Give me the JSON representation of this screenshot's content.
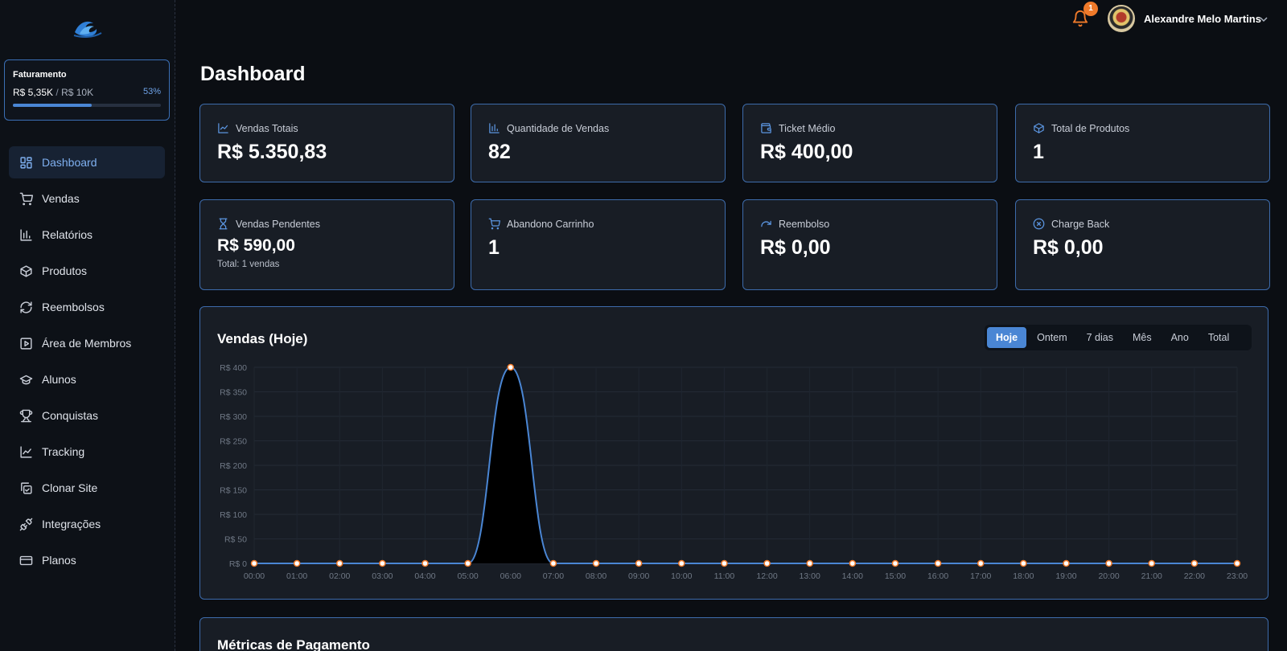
{
  "sidebar": {
    "logo_icon": "wave-logo-icon",
    "billing": {
      "title": "Faturamento",
      "current": "R$ 5,35K",
      "separator": "/",
      "goal": "R$ 10K",
      "percent_label": "53%",
      "progress": 0.53
    },
    "items": [
      {
        "label": "Dashboard",
        "icon": "grid-icon",
        "active": true
      },
      {
        "label": "Vendas",
        "icon": "cart-icon"
      },
      {
        "label": "Relatórios",
        "icon": "bar-chart-icon"
      },
      {
        "label": "Produtos",
        "icon": "box-icon"
      },
      {
        "label": "Reembolsos",
        "icon": "refresh-icon"
      },
      {
        "label": "Área de Membros",
        "icon": "play-square-icon"
      },
      {
        "label": "Alunos",
        "icon": "graduation-cap-icon"
      },
      {
        "label": "Conquistas",
        "icon": "trophy-icon"
      },
      {
        "label": "Tracking",
        "icon": "line-chart-icon"
      },
      {
        "label": "Clonar Site",
        "icon": "copy-check-icon"
      },
      {
        "label": "Integrações",
        "icon": "plug-icon"
      },
      {
        "label": "Planos",
        "icon": "credit-card-icon"
      }
    ]
  },
  "header": {
    "notifications_count": "1",
    "user_name": "Alexandre Melo Martins"
  },
  "page_title": "Dashboard",
  "stats": [
    {
      "label": "Vendas Totais",
      "value": "R$ 5.350,83",
      "icon": "trend-line-icon"
    },
    {
      "label": "Quantidade de Vendas",
      "value": "82",
      "icon": "bar-chart-icon"
    },
    {
      "label": "Ticket Médio",
      "value": "R$ 400,00",
      "icon": "wallet-icon"
    },
    {
      "label": "Total de Produtos",
      "value": "1",
      "icon": "box-icon"
    },
    {
      "label": "Vendas Pendentes",
      "value": "R$ 590,00",
      "sub": "Total: 1 vendas",
      "icon": "hourglass-icon"
    },
    {
      "label": "Abandono Carrinho",
      "value": "1",
      "icon": "cart-icon"
    },
    {
      "label": "Reembolso",
      "value": "R$ 0,00",
      "icon": "redo-arrow-icon"
    },
    {
      "label": "Charge Back",
      "value": "R$ 0,00",
      "icon": "x-circle-icon"
    }
  ],
  "chart_panel": {
    "title": "Vendas (Hoje)",
    "filters": [
      "Hoje",
      "Ontem",
      "7 dias",
      "Mês",
      "Ano",
      "Total"
    ],
    "active_filter": "Hoje"
  },
  "chart_data": {
    "type": "area",
    "x": [
      "00:00",
      "01:00",
      "02:00",
      "03:00",
      "04:00",
      "05:00",
      "06:00",
      "07:00",
      "08:00",
      "09:00",
      "10:00",
      "11:00",
      "12:00",
      "13:00",
      "14:00",
      "15:00",
      "16:00",
      "17:00",
      "18:00",
      "19:00",
      "20:00",
      "21:00",
      "22:00",
      "23:00"
    ],
    "series": [
      {
        "values": [
          0,
          0,
          0,
          0,
          0,
          0,
          400,
          0,
          0,
          0,
          0,
          0,
          0,
          0,
          0,
          0,
          0,
          0,
          0,
          0,
          0,
          0,
          0,
          0
        ],
        "color": "#4a86d4"
      }
    ],
    "yticks": [
      "R$ 0",
      "R$ 50",
      "R$ 100",
      "R$ 150",
      "R$ 200",
      "R$ 250",
      "R$ 300",
      "R$ 350",
      "R$ 400"
    ],
    "ylim": [
      0,
      400
    ],
    "grid": true
  },
  "metrics_panel": {
    "title": "Métricas de Pagamento"
  }
}
